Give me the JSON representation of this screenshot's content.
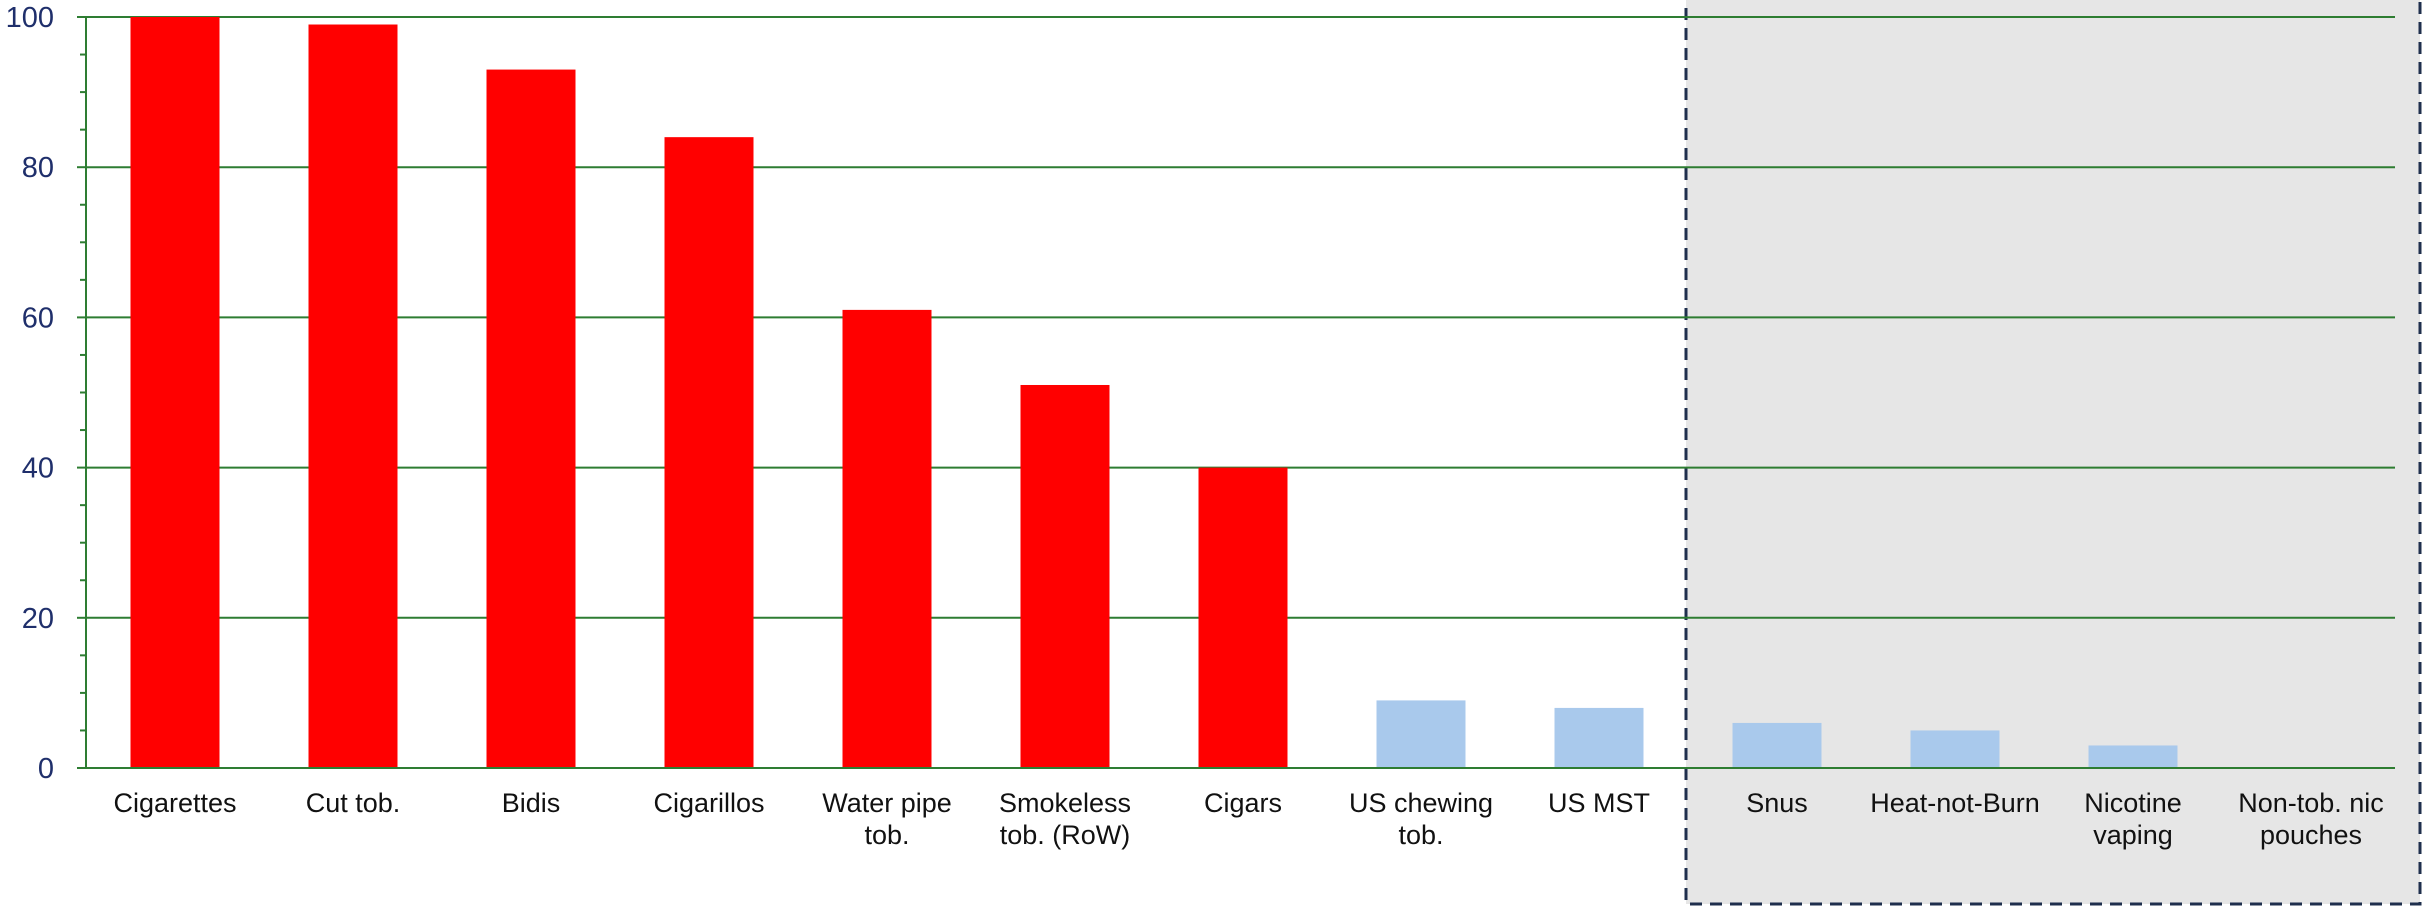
{
  "chart_data": {
    "type": "bar",
    "categories": [
      "Cigarettes",
      "Cut tob.",
      "Bidis",
      "Cigarillos",
      "Water pipe tob.",
      "Smokeless tob. (RoW)",
      "Cigars",
      "US chewing tob.",
      "US MST",
      "Snus",
      "Heat-not-Burn",
      "Nicotine vaping",
      "Non-tob. nic pouches"
    ],
    "category_lines": [
      [
        "Cigarettes"
      ],
      [
        "Cut tob."
      ],
      [
        "Bidis"
      ],
      [
        "Cigarillos"
      ],
      [
        "Water pipe",
        "tob."
      ],
      [
        "Smokeless",
        "tob. (RoW)"
      ],
      [
        "Cigars"
      ],
      [
        "US chewing",
        "tob."
      ],
      [
        "US MST"
      ],
      [
        "Snus"
      ],
      [
        "Heat-not-Burn"
      ],
      [
        "Nicotine",
        "vaping"
      ],
      [
        "Non-tob. nic",
        "pouches"
      ]
    ],
    "values": [
      100,
      99,
      93,
      84,
      61,
      51,
      40,
      9,
      8,
      6,
      5,
      3,
      0
    ],
    "bar_colors": [
      "#ff0000",
      "#ff0000",
      "#ff0000",
      "#ff0000",
      "#ff0000",
      "#ff0000",
      "#ff0000",
      "#a9c9ec",
      "#a9c9ec",
      "#a9c9ec",
      "#a9c9ec",
      "#a9c9ec",
      "#a9c9ec"
    ],
    "title": "",
    "xlabel": "",
    "ylabel": "",
    "ylim": [
      0,
      100
    ],
    "yticks": [
      0,
      20,
      40,
      60,
      80,
      100
    ],
    "grid": true,
    "grid_color": "#2e7d32",
    "axis_text_color": "#1f2f6b",
    "highlight_region": {
      "from_category": "Snus",
      "to_category": "Non-tob. nic pouches",
      "fill": "#e6e6e6",
      "border_color": "#1f2f4d"
    }
  }
}
